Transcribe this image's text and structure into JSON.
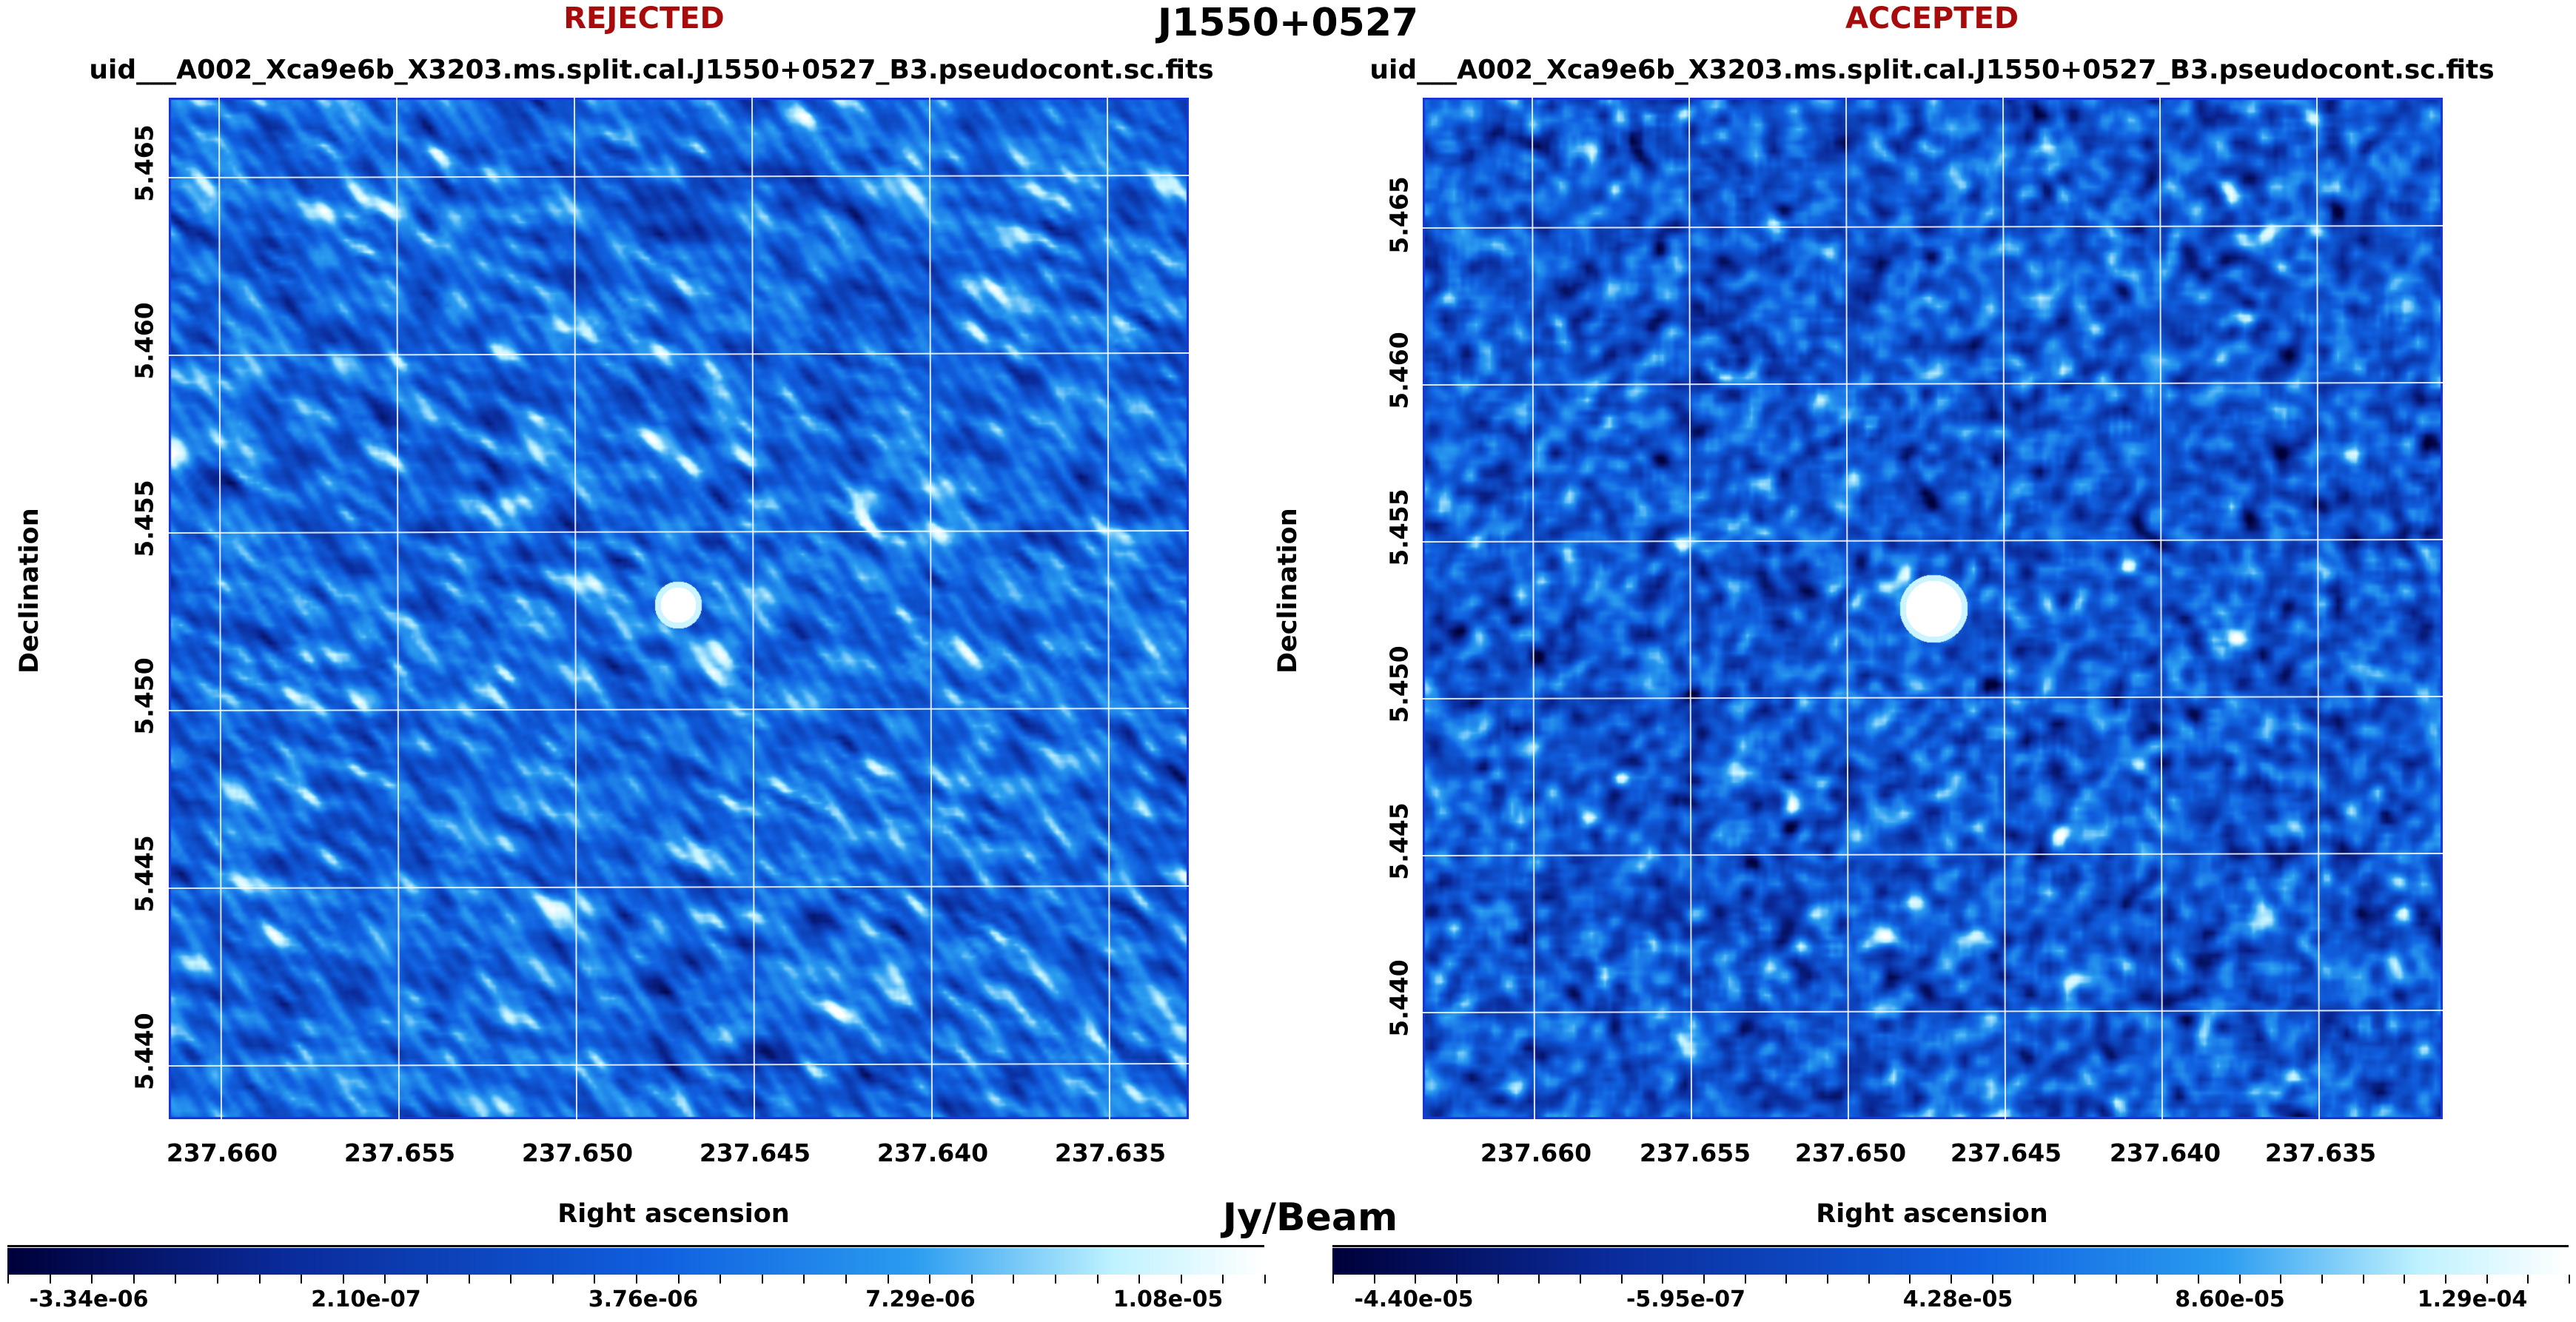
{
  "title": "J1550+0527",
  "unit_label": "Jy/Beam",
  "panels": [
    {
      "status": "REJECTED",
      "status_color": "#a80b0b",
      "filename": "uid___A002_Xca9e6b_X3203.ms.split.cal.J1550+0527_B3.pseudocont.sc.fits",
      "y_ticks": [
        "5.465",
        "5.460",
        "5.455",
        "5.450",
        "5.445",
        "5.440"
      ],
      "x_ticks": [
        "237.660",
        "237.655",
        "237.650",
        "237.645",
        "237.640",
        "237.635"
      ],
      "xlabel": "Right ascension",
      "ylabel": "Declination",
      "colorbar_ticks": [
        "-3.34e-06",
        "2.10e-07",
        "3.76e-06",
        "7.29e-06",
        "1.08e-05"
      ],
      "noise_style": "striped"
    },
    {
      "status": "ACCEPTED",
      "status_color": "#a80b0b",
      "filename": "uid___A002_Xca9e6b_X3203.ms.split.cal.J1550+0527_B3.pseudocont.sc.fits",
      "y_ticks": [
        "5.465",
        "5.460",
        "5.455",
        "5.450",
        "5.445",
        "5.440"
      ],
      "x_ticks": [
        "237.660",
        "237.655",
        "237.650",
        "237.645",
        "237.640",
        "237.635"
      ],
      "xlabel": "Right ascension",
      "ylabel": "Declination",
      "colorbar_ticks": [
        "-4.40e-05",
        "-5.95e-07",
        "4.28e-05",
        "8.60e-05",
        "1.29e-04"
      ],
      "noise_style": "mottled"
    }
  ],
  "colormap": [
    "#00003a",
    "#0a2a9a",
    "#1060e0",
    "#2a9cf0",
    "#bff2ff",
    "#ffffff"
  ]
}
